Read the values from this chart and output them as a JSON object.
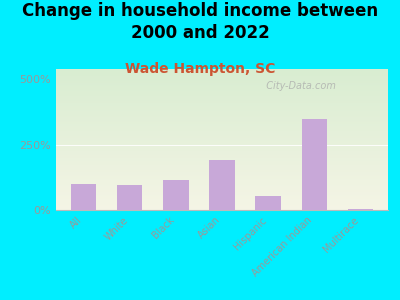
{
  "title": "Change in household income between\n2000 and 2022",
  "subtitle": "Wade Hampton, SC",
  "categories": [
    "All",
    "White",
    "Black",
    "Asian",
    "Hispanic",
    "American Indian",
    "Multirace"
  ],
  "values": [
    100,
    95,
    115,
    190,
    55,
    350,
    5
  ],
  "bar_color": "#c8a8d8",
  "background_outer": "#00eeff",
  "ylabel_ticks": [
    "0%",
    "250%",
    "500%"
  ],
  "ytick_values": [
    0,
    250,
    500
  ],
  "ylim": [
    0,
    540
  ],
  "title_fontsize": 12,
  "subtitle_fontsize": 10,
  "subtitle_color": "#cc5533",
  "watermark": "  City-Data.com",
  "tick_color": "#999999"
}
